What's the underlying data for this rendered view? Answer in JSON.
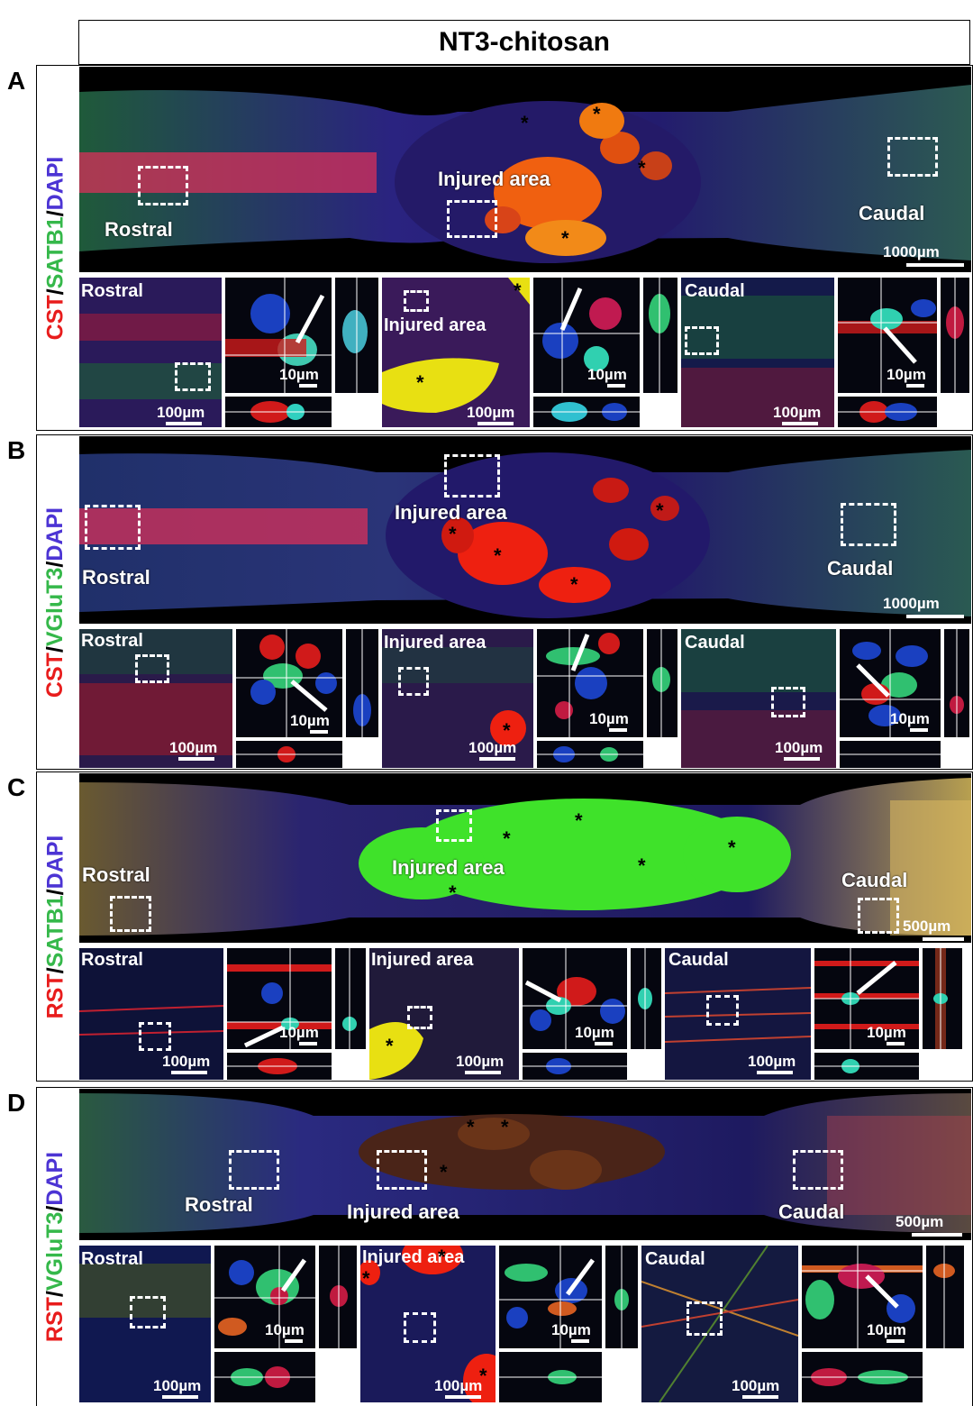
{
  "figure_title": "NT3-chitosan",
  "panels": [
    {
      "letter": "A",
      "stain": {
        "a": "CST",
        "b": "SATB1",
        "c": "DAPI"
      },
      "overview": {
        "rostral": "Rostral",
        "injured": "Injured area",
        "caudal": "Caudal",
        "scale": "1000µm"
      },
      "details": {
        "rostral": {
          "label": "Rostral",
          "scale_low": "100µm",
          "scale_high": "10µm"
        },
        "injured": {
          "label": "Injured area",
          "scale_low": "100µm",
          "scale_high": "10µm"
        },
        "caudal": {
          "label": "Caudal",
          "scale_low": "100µm",
          "scale_high": "10µm"
        }
      }
    },
    {
      "letter": "B",
      "stain": {
        "a": "CST",
        "b": "VGluT3",
        "c": "DAPI"
      },
      "overview": {
        "rostral": "Rostral",
        "injured": "Injured area",
        "caudal": "Caudal",
        "scale": "1000µm"
      },
      "details": {
        "rostral": {
          "label": "Rostral",
          "scale_low": "100µm",
          "scale_high": "10µm"
        },
        "injured": {
          "label": "Injured area",
          "scale_low": "100µm",
          "scale_high": "10µm"
        },
        "caudal": {
          "label": "Caudal",
          "scale_low": "100µm",
          "scale_high": "10µm"
        }
      }
    },
    {
      "letter": "C",
      "stain": {
        "a": "RST",
        "b": "SATB1",
        "c": "DAPI"
      },
      "overview": {
        "rostral": "Rostral",
        "injured": "Injured area",
        "caudal": "Caudal",
        "scale": "500µm"
      },
      "details": {
        "rostral": {
          "label": "Rostral",
          "scale_low": "100µm",
          "scale_high": "10µm"
        },
        "injured": {
          "label": "Injured area",
          "scale_low": "100µm",
          "scale_high": "10µm"
        },
        "caudal": {
          "label": "Caudal",
          "scale_low": "100µm",
          "scale_high": "10µm"
        }
      }
    },
    {
      "letter": "D",
      "stain": {
        "a": "RST",
        "b": "VGluT3",
        "c": "DAPI"
      },
      "overview": {
        "rostral": "Rostral",
        "injured": "Injured area",
        "caudal": "Caudal",
        "scale": "500µm"
      },
      "details": {
        "rostral": {
          "label": "Rostral",
          "scale_low": "100µm",
          "scale_high": "10µm"
        },
        "injured": {
          "label": "Injured area",
          "scale_low": "100µm",
          "scale_high": "10µm"
        },
        "caudal": {
          "label": "Caudal",
          "scale_low": "100µm",
          "scale_high": "10µm"
        }
      }
    }
  ],
  "lesion_marker": "*",
  "colors": {
    "cst_rst": "#e81c1c",
    "satb1_vglut3": "#35b84a",
    "dapi": "#4c34d4",
    "tissue_dark": "#1a1660",
    "lesion_A": "#f06010",
    "lesion_B": "#ee2010",
    "lesion_C": "#3fe22a",
    "lesion_D": "#6a3418"
  }
}
